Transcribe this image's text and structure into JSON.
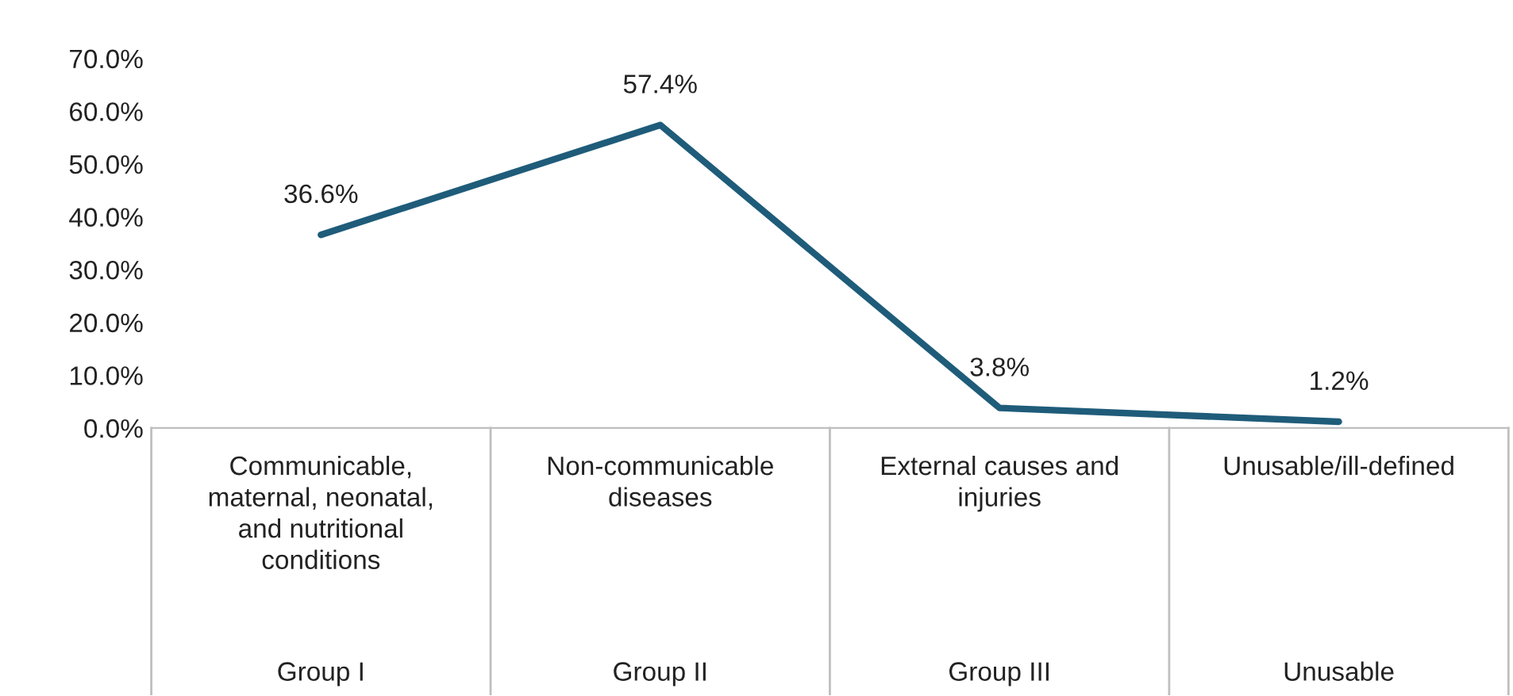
{
  "chart_data": {
    "type": "line",
    "categories": [
      "Communicable, maternal, neonatal, and nutritional conditions",
      "Non-communicable diseases",
      "External causes and injuries",
      "Unusable/ill-defined"
    ],
    "series": [
      {
        "color": "#1f5c7a",
        "values": [
          36.6,
          57.4,
          3.8,
          1.2
        ],
        "value_labels": [
          "36.6%",
          "57.4%",
          "3.8%",
          "1.2%"
        ]
      }
    ],
    "annotations": [
      "Group I",
      "Group II",
      "Group III",
      "Unusable"
    ],
    "ylim": [
      0,
      70
    ],
    "yticks": [
      {
        "value": 0,
        "label": "0.0%"
      },
      {
        "value": 10,
        "label": "10.0%"
      },
      {
        "value": 20,
        "label": "20.0%"
      },
      {
        "value": 30,
        "label": "30.0%"
      },
      {
        "value": 40,
        "label": "40.0%"
      },
      {
        "value": 50,
        "label": "50.0%"
      },
      {
        "value": 60,
        "label": "60.0%"
      },
      {
        "value": 70,
        "label": "70.0%"
      }
    ],
    "grid": false,
    "legend": false,
    "marker": "none",
    "line_style": "solid"
  }
}
